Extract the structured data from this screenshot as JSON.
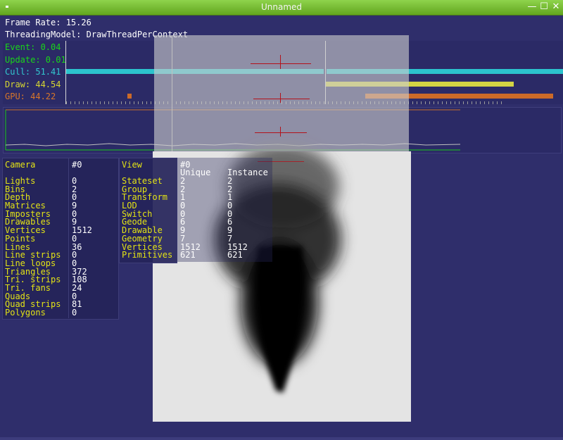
{
  "window": {
    "title": "Unnamed",
    "controls": {
      "minimize": "—",
      "maximize": "☐",
      "close": "✕"
    }
  },
  "stats": {
    "frame_rate": "Frame Rate: 15.26",
    "threading_model": "ThreadingModel: DrawThreadPerContext",
    "events": [
      {
        "label": "Event: 0.04",
        "color": "#19d619"
      },
      {
        "label": "Update: 0.01",
        "color": "#19d619"
      },
      {
        "label": "Cull: 51.41",
        "color": "#32c8d0"
      },
      {
        "label": "Draw: 44.54",
        "color": "#d6d632"
      },
      {
        "label": "GPU: 44.22",
        "color": "#d8762a"
      }
    ]
  },
  "camera_table": {
    "header_label": "Camera",
    "header_value": "#0",
    "rows": [
      [
        "Lights",
        "0"
      ],
      [
        "Bins",
        "2"
      ],
      [
        "Depth",
        "0"
      ],
      [
        "Matrices",
        "9"
      ],
      [
        "Imposters",
        "0"
      ],
      [
        "Drawables",
        "9"
      ],
      [
        "Vertices",
        "1512"
      ],
      [
        "Points",
        "0"
      ],
      [
        "Lines",
        "36"
      ],
      [
        "Line strips",
        "0"
      ],
      [
        "Line loops",
        "0"
      ],
      [
        "Triangles",
        "372"
      ],
      [
        "Tri. strips",
        "108"
      ],
      [
        "Tri. fans",
        "24"
      ],
      [
        "Quads",
        "0"
      ],
      [
        "Quad strips",
        "81"
      ],
      [
        "Polygons",
        "0"
      ]
    ]
  },
  "view_table": {
    "header_label": "View",
    "header_value": "#0",
    "col_unique": "Unique",
    "col_instance": "Instance",
    "rows": [
      [
        "Stateset",
        "2",
        "2"
      ],
      [
        "Group",
        "2",
        "2"
      ],
      [
        "Transform",
        "1",
        "1"
      ],
      [
        "LOD",
        "0",
        "0"
      ],
      [
        "Switch",
        "0",
        "0"
      ],
      [
        "Geode",
        "6",
        "6"
      ],
      [
        "Drawable",
        "9",
        "9"
      ],
      [
        "Geometry",
        "7",
        "7"
      ],
      [
        "Vertices",
        "1512",
        "1512"
      ],
      [
        "Primitives",
        "621",
        "621"
      ]
    ]
  }
}
